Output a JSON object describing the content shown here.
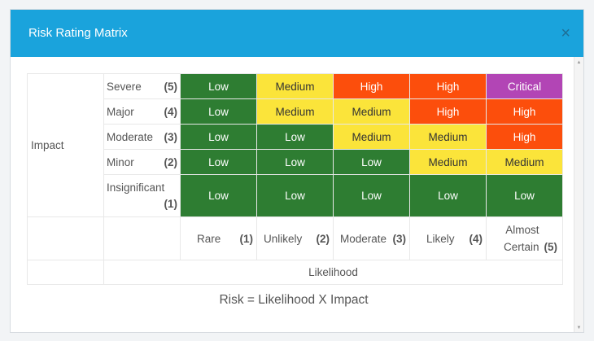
{
  "dialog": {
    "title": "Risk Rating Matrix",
    "close_icon": "×"
  },
  "axes": {
    "impact_title": "Impact",
    "likelihood_title": "Likelihood"
  },
  "impact_rows": [
    {
      "label": "Severe",
      "num": "(5)"
    },
    {
      "label": "Major",
      "num": "(4)"
    },
    {
      "label": "Moderate",
      "num": "(3)"
    },
    {
      "label": "Minor",
      "num": "(2)"
    },
    {
      "label": "Insignificant",
      "num": "(1)"
    }
  ],
  "likelihood_cols": [
    {
      "label": "Rare",
      "num": "(1)"
    },
    {
      "label": "Unlikely",
      "num": "(2)"
    },
    {
      "label": "Moderate",
      "num": "(3)"
    },
    {
      "label": "Likely",
      "num": "(4)"
    },
    {
      "label": "Almost Certain",
      "label_line1": "Almost",
      "label_line2": "Certain",
      "num": "(5)"
    }
  ],
  "cells": [
    [
      "Low",
      "Medium",
      "High",
      "High",
      "Critical"
    ],
    [
      "Low",
      "Medium",
      "Medium",
      "High",
      "High"
    ],
    [
      "Low",
      "Low",
      "Medium",
      "Medium",
      "High"
    ],
    [
      "Low",
      "Low",
      "Low",
      "Medium",
      "Medium"
    ],
    [
      "Low",
      "Low",
      "Low",
      "Low",
      "Low"
    ]
  ],
  "rating_colors": {
    "Low": "#2e7d32",
    "Medium": "#fbe43a",
    "High": "#fc4e0c",
    "Critical": "#b245b5"
  },
  "formula": "Risk = Likelihood X Impact"
}
